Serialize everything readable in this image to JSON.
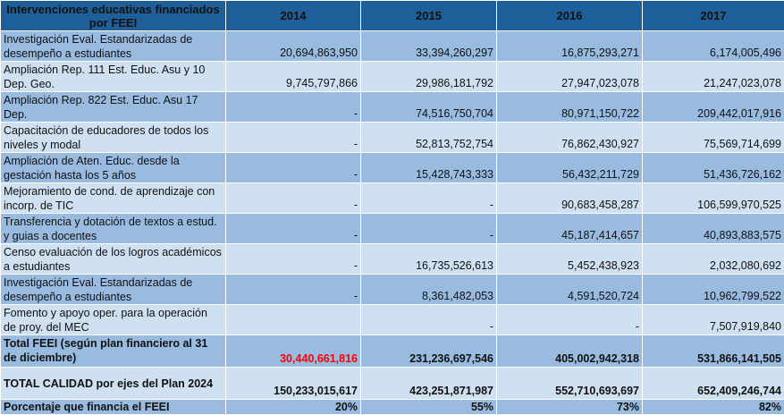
{
  "header": {
    "label": "Intervenciones educativas financiados por FEEI",
    "years": [
      "2014",
      "2015",
      "2016",
      "2017"
    ]
  },
  "rows": [
    {
      "label": "Investigación Eval. Estandarizadas de desempeño a estudiantes",
      "values": [
        "20,694,863,950",
        "33,394,260,297",
        "16,875,293,271",
        "6,174,005,496"
      ]
    },
    {
      "label": "Ampliación Rep. 111 Est. Educ. Asu y 10 Dep. Geo.",
      "values": [
        "9,745,797,866",
        "29,986,181,792",
        "27,947,023,078",
        "21,247,023,078"
      ]
    },
    {
      "label": "Ampliación Rep. 822 Est. Educ. Asu 17 Dep.",
      "values": [
        "-",
        "74,516,750,704",
        "80,971,150,722",
        "209,442,017,916"
      ]
    },
    {
      "label": "Capacitación de educadores de todos los niveles y modal",
      "values": [
        "-",
        "52,813,752,754",
        "76,862,430,927",
        "75,569,714,699"
      ]
    },
    {
      "label": "Ampliación de Aten. Educ. desde la gestación hasta los 5 años",
      "values": [
        "-",
        "15,428,743,333",
        "56,432,211,729",
        "51,436,726,162"
      ]
    },
    {
      "label": "Mejoramiento de cond. de aprendizaje con incorp. de TIC",
      "values": [
        "-",
        "-",
        "90,683,458,287",
        "106,599,970,525"
      ]
    },
    {
      "label": "Transferencia y dotación de textos a estud. y guias a docentes",
      "values": [
        "-",
        "-",
        "45,187,414,657",
        "40,893,883,575"
      ]
    },
    {
      "label": "Censo evaluación de los logros académicos a estudiantes",
      "values": [
        "-",
        "16,735,526,613",
        "5,452,438,923",
        "2,032,080,692"
      ]
    },
    {
      "label": "Investigación Eval. Estandarizadas de desempeño a estudiantes",
      "values": [
        "-",
        "8,361,482,053",
        "4,591,520,724",
        "10,962,799,522"
      ]
    },
    {
      "label": "Fomento y apoyo oper. para la operación de proy. del MEC",
      "values": [
        "",
        "-",
        "-",
        "7,507,919,840"
      ]
    }
  ],
  "totals": {
    "feei": {
      "label": "Total FEEI (según plan financiero al 31 de diciembre)",
      "values": [
        "30,440,661,816",
        "231,236,697,546",
        "405,002,942,318",
        "531,866,141,505"
      ]
    },
    "calidad": {
      "label": "TOTAL CALIDAD por ejes del Plan 2024",
      "values": [
        "150,233,015,617",
        "423,251,871,987",
        "552,710,693,697",
        "652,409,246,744"
      ]
    },
    "porcentaje": {
      "label": "Porcentaje que financia el FEEI",
      "values": [
        "20%",
        "55%",
        "73%",
        "82%"
      ]
    }
  },
  "colors": {
    "header_bg": "#1f5f99",
    "row_dark": "#99bbe0",
    "row_light": "#cfe0f0",
    "highlight": "#ff0000"
  }
}
